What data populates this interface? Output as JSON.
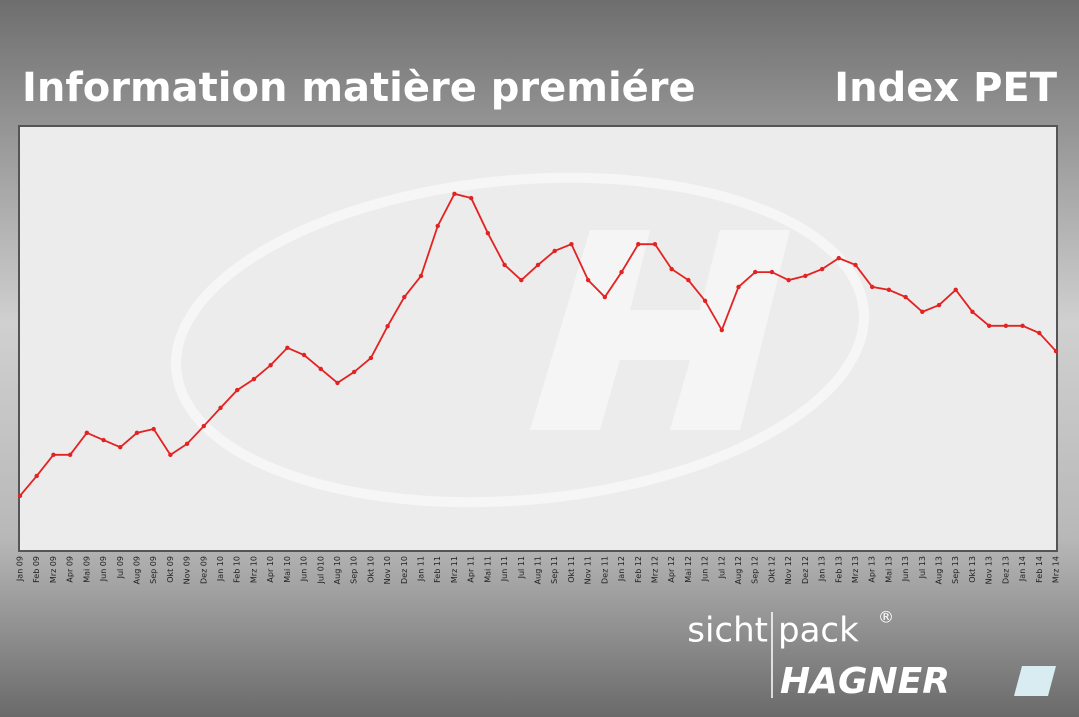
{
  "header": {
    "title": "Information matière premiére",
    "subtitle": "Index PET"
  },
  "chart_data": {
    "type": "line",
    "categories": [
      "Jan 09",
      "Feb 09",
      "Mrz 09",
      "Apr 09",
      "Mai 09",
      "Jun 09",
      "Jul 09",
      "Aug 09",
      "Sep 09",
      "Okt 09",
      "Nov 09",
      "Dez 09",
      "Jan 10",
      "Feb 10",
      "Mrz 10",
      "Apr 10",
      "Mai 10",
      "Jun 10",
      "Jul 010",
      "Aug 10",
      "Sep 10",
      "Okt 10",
      "Nov 10",
      "Dez 10",
      "Jan 11",
      "Feb 11",
      "Mrz 11",
      "Apr 11",
      "Mai 11",
      "Jun 11",
      "Jul 11",
      "Aug 11",
      "Sep 11",
      "Okt 11",
      "Nov 11",
      "Dez 11",
      "Jan 12",
      "Feb 12",
      "Mrz 12",
      "Apr 12",
      "Mai 12",
      "Jun 12",
      "Jul 12",
      "Aug 12",
      "Sep 12",
      "Okt 12",
      "Nov 12",
      "Dez 12",
      "Jan 13",
      "Feb 13",
      "Mrz 13",
      "Apr 13",
      "Mai 13",
      "Jun 13",
      "Jul 13",
      "Aug 13",
      "Sep 13",
      "Okt 13",
      "Nov 13",
      "Dez 13",
      "Jan 14",
      "Feb 14",
      "Mrz 14"
    ],
    "values": [
      12.8,
      17.5,
      22.5,
      22.5,
      27.7,
      26.0,
      24.3,
      27.7,
      28.6,
      22.5,
      25.1,
      29.3,
      33.6,
      37.8,
      40.4,
      43.7,
      47.8,
      46.1,
      42.8,
      39.5,
      42.1,
      45.4,
      52.9,
      59.8,
      64.8,
      76.6,
      84.2,
      83.2,
      74.9,
      67.4,
      63.8,
      67.4,
      70.7,
      72.3,
      63.8,
      59.8,
      65.7,
      72.3,
      72.3,
      66.4,
      63.8,
      58.9,
      52.0,
      62.2,
      65.7,
      65.7,
      63.8,
      64.8,
      66.4,
      69.0,
      67.4,
      62.2,
      61.5,
      59.8,
      56.3,
      57.9,
      61.5,
      56.3,
      53.0,
      53.0,
      53.0,
      51.3,
      47.0
    ],
    "color": "#e32222",
    "ylim": [
      0,
      100
    ]
  },
  "logo": {
    "word1": "sicht",
    "word2": "pack",
    "mark": "®",
    "brand": "HAGNER"
  }
}
